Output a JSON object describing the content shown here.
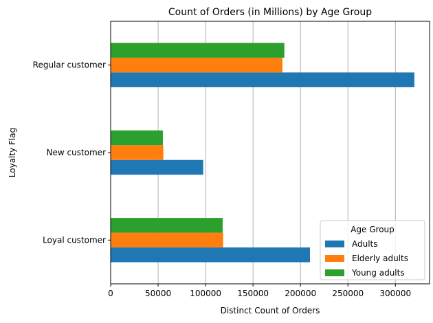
{
  "chart_data": {
    "type": "bar",
    "orientation": "horizontal",
    "title": "Count of Orders (in Millions) by Age Group",
    "xlabel": "Distinct Count of Orders",
    "ylabel": "Loyalty Flag",
    "categories": [
      "Loyal customer",
      "New customer",
      "Regular customer"
    ],
    "x_ticks": [
      0,
      50000,
      100000,
      150000,
      200000,
      250000,
      300000
    ],
    "x_tick_labels": [
      "0",
      "50000",
      "100000",
      "150000",
      "200000",
      "250000",
      "300000"
    ],
    "xlim": [
      0,
      336000
    ],
    "grid": "vertical",
    "legend": {
      "title": "Age Group",
      "placement": "lower-right"
    },
    "series": [
      {
        "name": "Adults",
        "color": "#1f77b4",
        "values": [
          210000,
          97500,
          320000
        ]
      },
      {
        "name": "Elderly adults",
        "color": "#ff7f0e",
        "values": [
          118500,
          55500,
          181000
        ]
      },
      {
        "name": "Young adults",
        "color": "#2ca02c",
        "values": [
          118000,
          55000,
          183000
        ]
      }
    ]
  }
}
